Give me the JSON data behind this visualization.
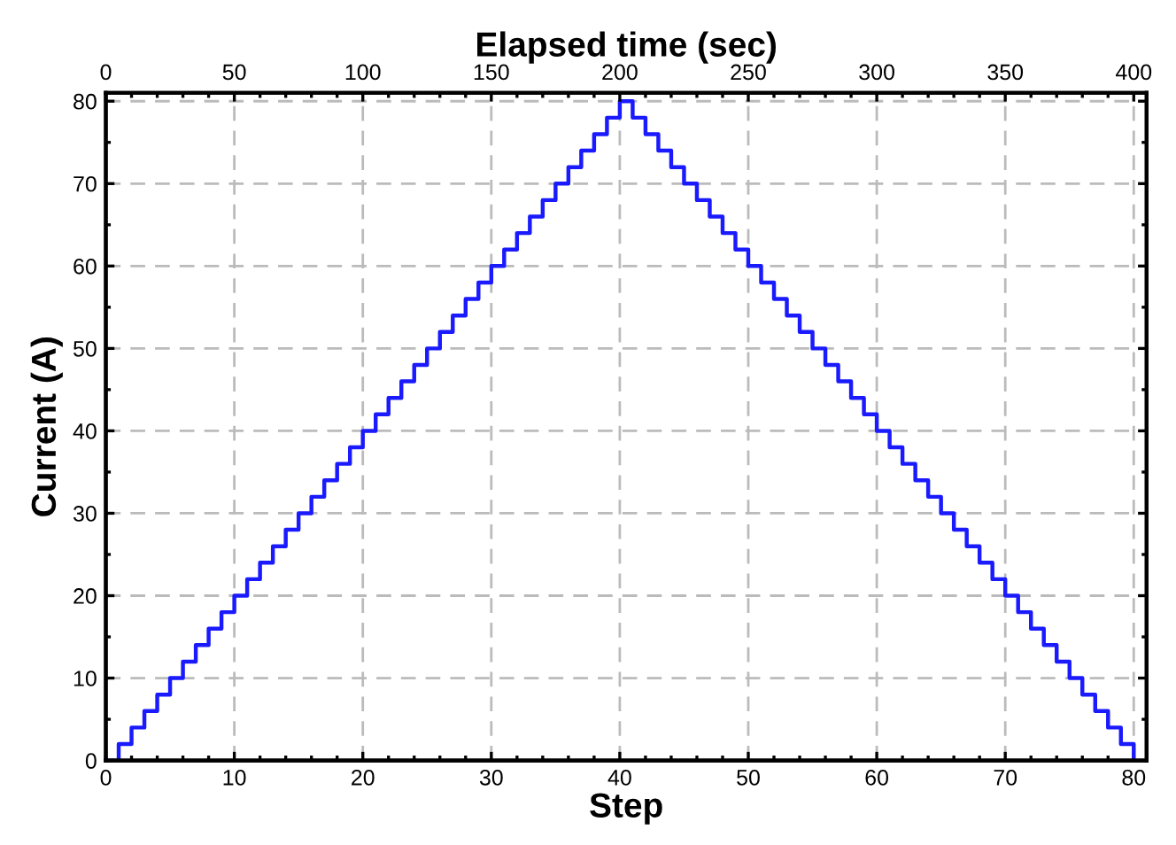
{
  "chart_data": {
    "type": "step",
    "xlabel": "Step",
    "ylabel": "Current (A)",
    "x2label": "Elapsed time (sec)",
    "x": [
      0,
      1,
      2,
      3,
      4,
      5,
      6,
      7,
      8,
      9,
      10,
      11,
      12,
      13,
      14,
      15,
      16,
      17,
      18,
      19,
      20,
      21,
      22,
      23,
      24,
      25,
      26,
      27,
      28,
      29,
      30,
      31,
      32,
      33,
      34,
      35,
      36,
      37,
      38,
      39,
      40,
      41,
      42,
      43,
      44,
      45,
      46,
      47,
      48,
      49,
      50,
      51,
      52,
      53,
      54,
      55,
      56,
      57,
      58,
      59,
      60,
      61,
      62,
      63,
      64,
      65,
      66,
      67,
      68,
      69,
      70,
      71,
      72,
      73,
      74,
      75,
      76,
      77,
      78,
      79,
      80
    ],
    "series": [
      {
        "color": "#1a1aff",
        "values": [
          0,
          2,
          4,
          6,
          8,
          10,
          12,
          14,
          16,
          18,
          20,
          22,
          24,
          26,
          28,
          30,
          32,
          34,
          36,
          38,
          40,
          42,
          44,
          46,
          48,
          50,
          52,
          54,
          56,
          58,
          60,
          62,
          64,
          66,
          68,
          70,
          72,
          74,
          76,
          78,
          80,
          78,
          76,
          74,
          72,
          70,
          68,
          66,
          64,
          62,
          60,
          58,
          56,
          54,
          52,
          50,
          48,
          46,
          44,
          42,
          40,
          38,
          36,
          34,
          32,
          30,
          28,
          26,
          24,
          22,
          20,
          18,
          16,
          14,
          12,
          10,
          8,
          6,
          4,
          2,
          0
        ]
      }
    ],
    "xlim": [
      0,
      81
    ],
    "xticks": [
      0,
      10,
      20,
      30,
      40,
      50,
      60,
      70,
      80
    ],
    "x2lim": [
      0,
      405
    ],
    "x2ticks": [
      0,
      50,
      100,
      150,
      200,
      250,
      300,
      350,
      400
    ],
    "ylim": [
      0,
      81
    ],
    "yticks": [
      0,
      10,
      20,
      30,
      40,
      50,
      60,
      70,
      80
    ],
    "grid": true,
    "line_style": "solid",
    "marker": "none"
  }
}
